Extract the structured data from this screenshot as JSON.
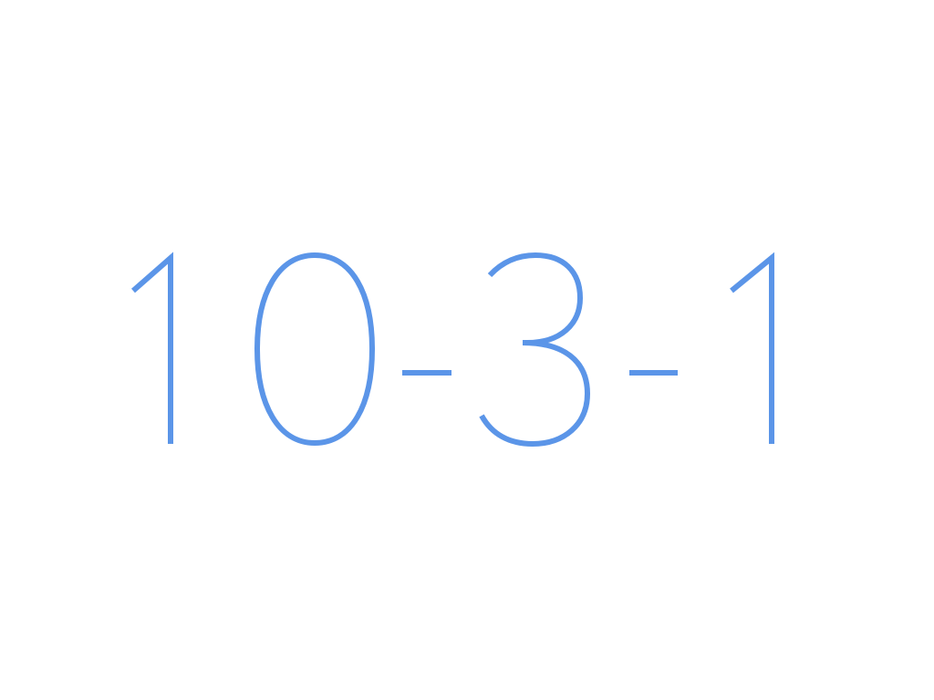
{
  "display": {
    "text": "10-3-1",
    "color": "#5b95e8"
  }
}
